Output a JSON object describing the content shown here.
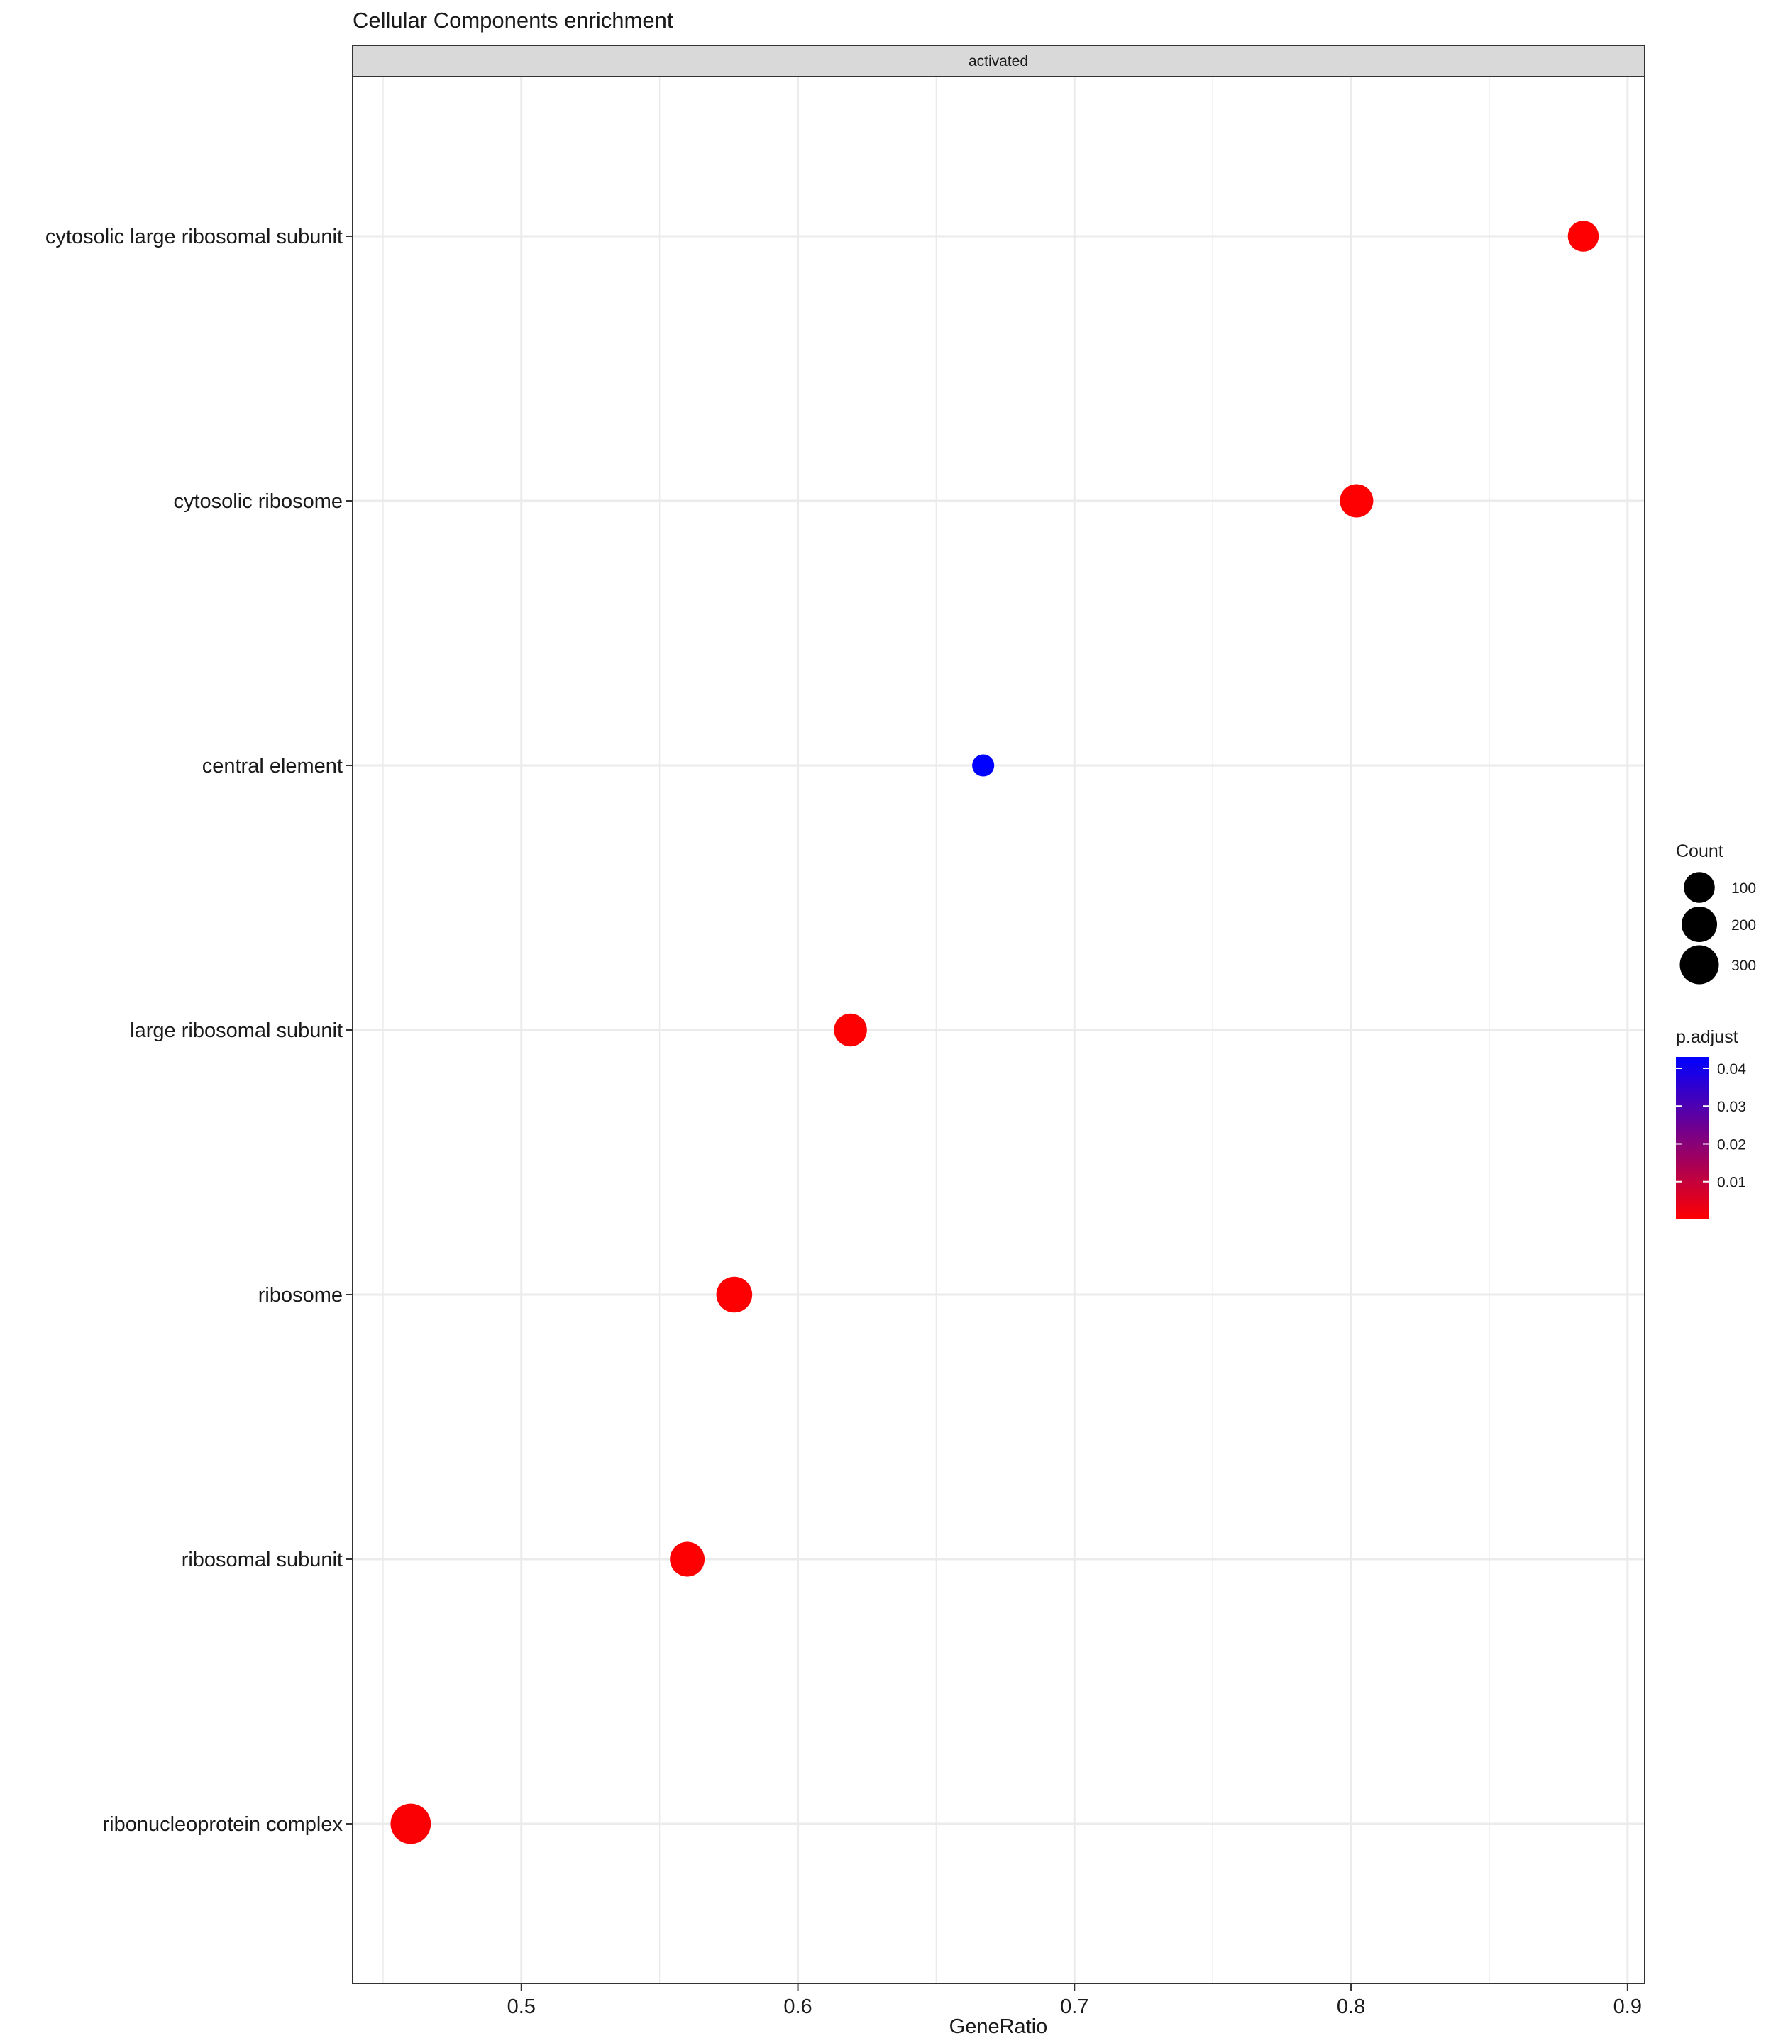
{
  "chart_data": {
    "type": "scatter",
    "title": "Cellular Components enrichment",
    "facet": "activated",
    "xlabel": "GeneRatio",
    "ylabel": "",
    "xlim": [
      0.439,
      0.9062
    ],
    "x_ticks": [
      0.5,
      0.6,
      0.7,
      0.8,
      0.9
    ],
    "x_tick_labels": [
      "0.5",
      "0.6",
      "0.7",
      "0.8",
      "0.9"
    ],
    "grid": true,
    "categories": [
      "cytosolic large ribosomal subunit",
      "cytosolic ribosome",
      "central element",
      "large ribosomal subunit",
      "ribosome",
      "ribosomal subunit",
      "ribonucleoprotein complex"
    ],
    "points": [
      {
        "term": "cytosolic large ribosomal subunit",
        "gene_ratio": 0.884,
        "count": 100,
        "p_adjust": 0.0002
      },
      {
        "term": "cytosolic ribosome",
        "gene_ratio": 0.802,
        "count": 150,
        "p_adjust": 0.0002
      },
      {
        "term": "central element",
        "gene_ratio": 0.667,
        "count": 4,
        "p_adjust": 0.043
      },
      {
        "term": "large ribosomal subunit",
        "gene_ratio": 0.619,
        "count": 140,
        "p_adjust": 0.0003
      },
      {
        "term": "ribosome",
        "gene_ratio": 0.577,
        "count": 210,
        "p_adjust": 0.0003
      },
      {
        "term": "ribosomal subunit",
        "gene_ratio": 0.56,
        "count": 180,
        "p_adjust": 0.0003
      },
      {
        "term": "ribonucleoprotein complex",
        "gene_ratio": 0.46,
        "count": 340,
        "p_adjust": 0.0009
      }
    ],
    "legend_size": {
      "title": "Count",
      "placement": "right",
      "values": [
        100,
        200,
        300
      ],
      "labels": [
        "100",
        "200",
        "300"
      ]
    },
    "legend_color": {
      "title": "p.adjust",
      "placement": "right",
      "range": [
        0.0,
        0.043
      ],
      "low_color": "#ff0000",
      "high_color": "#0000ff",
      "ticks": [
        0.04,
        0.03,
        0.02,
        0.01
      ],
      "tick_labels": [
        "0.04",
        "0.03",
        "0.02",
        "0.01"
      ]
    },
    "colors": {
      "grid": "#ebebeb",
      "panel_border": "#333333",
      "strip_fill": "#d9d9d9",
      "legend_point": "#000000"
    }
  }
}
